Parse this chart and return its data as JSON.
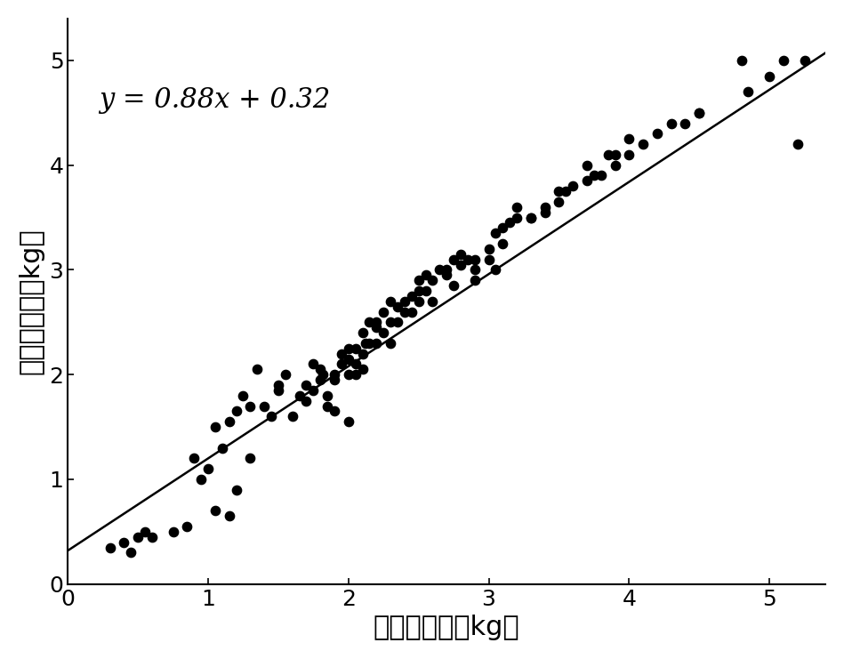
{
  "scatter_x": [
    0.3,
    0.4,
    0.45,
    0.5,
    0.55,
    0.6,
    0.75,
    0.85,
    0.9,
    0.95,
    1.0,
    1.05,
    1.05,
    1.1,
    1.15,
    1.15,
    1.2,
    1.2,
    1.25,
    1.3,
    1.3,
    1.35,
    1.4,
    1.45,
    1.5,
    1.5,
    1.55,
    1.6,
    1.65,
    1.7,
    1.7,
    1.75,
    1.75,
    1.8,
    1.8,
    1.82,
    1.85,
    1.85,
    1.9,
    1.9,
    1.9,
    1.95,
    1.95,
    2.0,
    2.0,
    2.0,
    2.0,
    2.05,
    2.05,
    2.05,
    2.1,
    2.1,
    2.1,
    2.12,
    2.15,
    2.15,
    2.2,
    2.2,
    2.2,
    2.25,
    2.25,
    2.3,
    2.3,
    2.3,
    2.35,
    2.35,
    2.4,
    2.4,
    2.45,
    2.45,
    2.5,
    2.5,
    2.5,
    2.55,
    2.55,
    2.6,
    2.6,
    2.65,
    2.7,
    2.7,
    2.75,
    2.75,
    2.8,
    2.8,
    2.85,
    2.9,
    2.9,
    2.9,
    3.0,
    3.0,
    3.05,
    3.05,
    3.1,
    3.1,
    3.15,
    3.2,
    3.2,
    3.3,
    3.3,
    3.4,
    3.4,
    3.5,
    3.5,
    3.55,
    3.6,
    3.7,
    3.7,
    3.75,
    3.8,
    3.85,
    3.9,
    3.9,
    4.0,
    4.0,
    4.1,
    4.2,
    4.3,
    4.4,
    4.5,
    4.5,
    4.8,
    4.85,
    5.0,
    5.1,
    5.2,
    5.25
  ],
  "scatter_y": [
    0.35,
    0.4,
    0.3,
    0.45,
    0.5,
    0.45,
    0.5,
    0.55,
    1.2,
    1.0,
    1.1,
    1.5,
    0.7,
    1.3,
    0.65,
    1.55,
    0.9,
    1.65,
    1.8,
    1.7,
    1.2,
    2.05,
    1.7,
    1.6,
    1.85,
    1.9,
    2.0,
    1.6,
    1.8,
    1.9,
    1.75,
    1.85,
    2.1,
    2.05,
    1.95,
    2.0,
    1.7,
    1.8,
    2.0,
    1.95,
    1.65,
    2.1,
    2.2,
    2.0,
    2.15,
    1.55,
    2.25,
    2.0,
    2.25,
    2.1,
    2.2,
    2.05,
    2.4,
    2.3,
    2.5,
    2.3,
    2.3,
    2.45,
    2.5,
    2.4,
    2.6,
    2.5,
    2.7,
    2.3,
    2.65,
    2.5,
    2.7,
    2.6,
    2.6,
    2.75,
    2.7,
    2.8,
    2.9,
    2.8,
    2.95,
    2.9,
    2.7,
    3.0,
    3.0,
    2.95,
    3.1,
    2.85,
    3.15,
    3.05,
    3.1,
    3.1,
    3.0,
    2.9,
    3.1,
    3.2,
    3.35,
    3.0,
    3.4,
    3.25,
    3.45,
    3.5,
    3.6,
    3.5,
    3.5,
    3.6,
    3.55,
    3.75,
    3.65,
    3.75,
    3.8,
    3.85,
    4.0,
    3.9,
    3.9,
    4.1,
    4.0,
    4.1,
    4.1,
    4.25,
    4.2,
    4.3,
    4.4,
    4.4,
    4.5,
    4.5,
    5.0,
    4.7,
    4.85,
    5.0,
    4.2,
    5.0
  ],
  "line_slope": 0.88,
  "line_intercept": 0.32,
  "xlabel": "硬度实测値（kg）",
  "ylabel": "硬度预测値（kg）",
  "equation": "y = 0.88x + 0.32",
  "xlim": [
    0,
    5.4
  ],
  "ylim": [
    0,
    5.4
  ],
  "xticks": [
    0,
    1,
    2,
    3,
    4,
    5
  ],
  "yticks": [
    0,
    1,
    2,
    3,
    4,
    5
  ],
  "dot_color": "#000000",
  "line_color": "#000000",
  "bg_color": "#ffffff",
  "dot_size": 55,
  "equation_fontsize": 22,
  "axis_label_fontsize": 22,
  "tick_fontsize": 18
}
